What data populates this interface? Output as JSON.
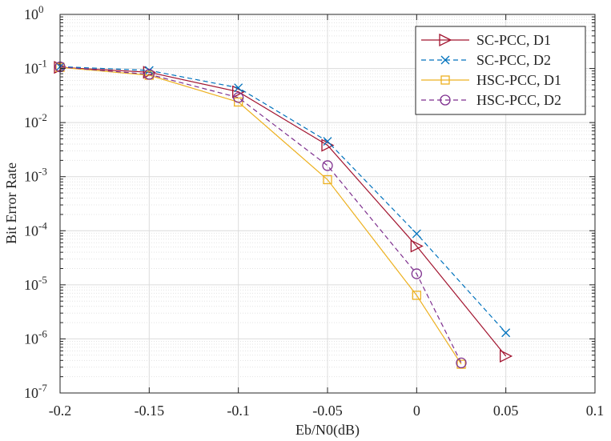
{
  "chart_data": {
    "type": "line",
    "title": "",
    "xlabel": "Eb/N0(dB)",
    "ylabel": "Bit Error Rate",
    "xlim": [
      -0.2,
      0.1
    ],
    "ylim": [
      1e-07,
      1
    ],
    "yscale": "log",
    "grid": true,
    "minor_grid": true,
    "legend_position": "top-right",
    "x_ticks": [
      -0.2,
      -0.15,
      -0.1,
      -0.05,
      0,
      0.05,
      0.1
    ],
    "x_tick_labels": [
      "-0.2",
      "-0.15",
      "-0.1",
      "-0.05",
      "0",
      "0.05",
      "0.1"
    ],
    "y_ticks": [
      {
        "value": 1.0,
        "base": "10",
        "exp": "0"
      },
      {
        "value": 0.1,
        "base": "10",
        "exp": "-1"
      },
      {
        "value": 0.01,
        "base": "10",
        "exp": "-2"
      },
      {
        "value": 0.001,
        "base": "10",
        "exp": "-3"
      },
      {
        "value": 0.0001,
        "base": "10",
        "exp": "-4"
      },
      {
        "value": 1e-05,
        "base": "10",
        "exp": "-5"
      },
      {
        "value": 1e-06,
        "base": "10",
        "exp": "-6"
      },
      {
        "value": 1e-07,
        "base": "10",
        "exp": "-7"
      }
    ],
    "series": [
      {
        "name": "SC-PCC, D1",
        "color": "#a2142f",
        "marker": "triangle-right",
        "dash": "solid",
        "x": [
          -0.2,
          -0.15,
          -0.1,
          -0.05,
          0,
          0.05
        ],
        "y": [
          0.105,
          0.085,
          0.037,
          0.0038,
          5.2e-05,
          4.8e-07
        ]
      },
      {
        "name": "SC-PCC, D2",
        "color": "#0072bd",
        "marker": "x",
        "dash": "dashed",
        "x": [
          -0.2,
          -0.15,
          -0.1,
          -0.05,
          0,
          0.05
        ],
        "y": [
          0.108,
          0.092,
          0.044,
          0.0045,
          8.8e-05,
          1.3e-06
        ]
      },
      {
        "name": "HSC-PCC, D1",
        "color": "#edb120",
        "marker": "square",
        "dash": "solid",
        "x": [
          -0.2,
          -0.15,
          -0.1,
          -0.05,
          0,
          0.025
        ],
        "y": [
          0.105,
          0.075,
          0.024,
          0.00088,
          6.4e-06,
          3.4e-07
        ]
      },
      {
        "name": "HSC-PCC, D2",
        "color": "#7e2f8e",
        "marker": "circle",
        "dash": "dashed",
        "x": [
          -0.2,
          -0.15,
          -0.1,
          -0.05,
          0,
          0.025
        ],
        "y": [
          0.107,
          0.078,
          0.029,
          0.0016,
          1.6e-05,
          3.6e-07
        ]
      }
    ]
  }
}
